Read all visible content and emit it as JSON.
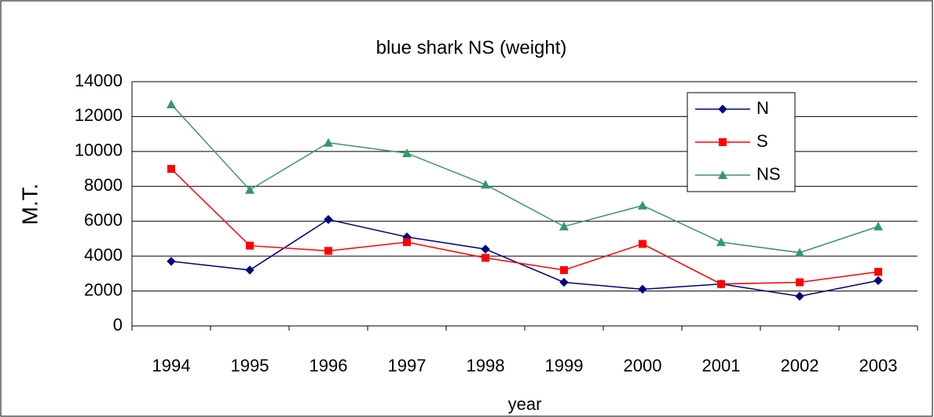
{
  "chart_data": {
    "type": "line",
    "title": "blue shark NS (weight)",
    "x_label": "year",
    "y_label": "M.T.",
    "categories": [
      "1994",
      "1995",
      "1996",
      "1997",
      "1998",
      "1999",
      "2000",
      "2001",
      "2002",
      "2003"
    ],
    "series": [
      {
        "name": "N",
        "color": "#000080",
        "marker": "diamond",
        "values": [
          3700,
          3200,
          6100,
          5100,
          4400,
          2500,
          2100,
          2400,
          1700,
          2600
        ]
      },
      {
        "name": "S",
        "color": "#ff0000",
        "marker": "square",
        "values": [
          9000,
          4600,
          4300,
          4800,
          3900,
          3200,
          4700,
          2400,
          2500,
          3100
        ]
      },
      {
        "name": "NS",
        "color": "#339966",
        "marker": "triangle",
        "values": [
          12700,
          7800,
          10500,
          9900,
          8100,
          5700,
          6900,
          4800,
          4200,
          5700
        ]
      }
    ],
    "ylim": [
      0,
      14000
    ],
    "yticks": [
      0,
      2000,
      4000,
      6000,
      8000,
      10000,
      12000,
      14000
    ],
    "grid": true,
    "legend": "upper right"
  }
}
